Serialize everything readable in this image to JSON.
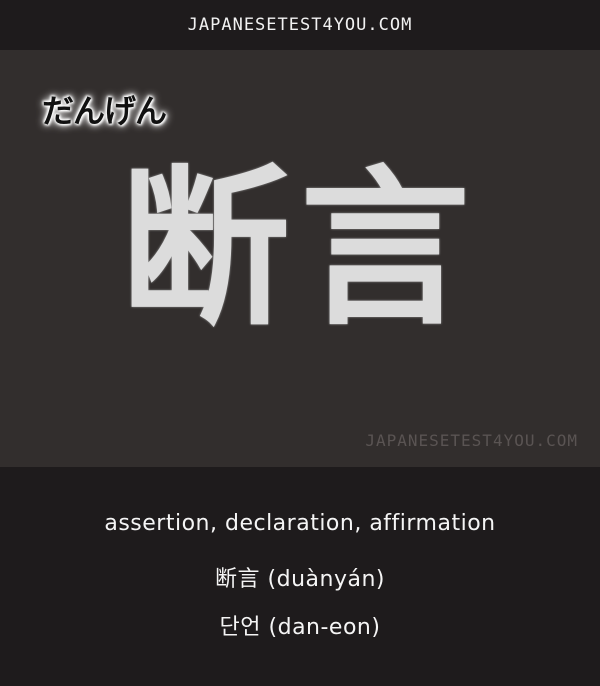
{
  "header": {
    "site": "JAPANESETEST4YOU.COM"
  },
  "card": {
    "reading": "だんげん",
    "kanji": "断言",
    "watermark": "JAPANESETEST4YOU.COM"
  },
  "translations": {
    "meaning": "assertion, declaration, affirmation",
    "chinese": "断言 (duànyán)",
    "korean": "단언 (dan-eon)"
  }
}
